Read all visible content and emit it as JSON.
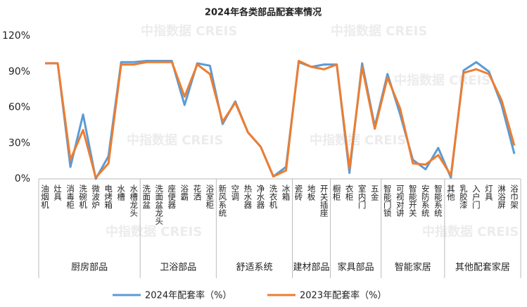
{
  "chart_data": {
    "type": "line",
    "title": "2024年各类部品配套率情况",
    "watermark": "中指数据 CREIS",
    "groups": [
      {
        "name": "厨房部品",
        "categories": [
          "油烟机",
          "灶具",
          "消毒柜",
          "洗碗机",
          "微波炉",
          "电烤箱",
          "水槽",
          "水槽龙头"
        ]
      },
      {
        "name": "卫浴部品",
        "categories": [
          "洗面盆",
          "洗面盆龙头",
          "座便器",
          "浴霸",
          "花洒",
          "浴室柜"
        ]
      },
      {
        "name": "舒适系统",
        "categories": [
          "新风系统",
          "空调",
          "热水器",
          "净水器",
          "洗衣机",
          "冰箱"
        ]
      },
      {
        "name": "建材部品",
        "categories": [
          "瓷砖",
          "地板",
          "开关插座"
        ]
      },
      {
        "name": "家具部品",
        "categories": [
          "橱柜",
          "衣柜",
          "室内门",
          "五金"
        ]
      },
      {
        "name": "智能家居",
        "categories": [
          "智能门锁",
          "可视对讲",
          "智能开关",
          "安防系统",
          "智能系统"
        ]
      },
      {
        "name": "其他配套家居",
        "categories": [
          "其他",
          "乳胶漆",
          "入户门",
          "灯具",
          "淋浴屏",
          "浴巾架"
        ]
      }
    ],
    "series": [
      {
        "name": "2024年配套率（%）",
        "color": "#5b9bd5",
        "values": [
          97,
          97,
          10,
          54,
          0,
          19,
          98,
          98,
          99,
          99,
          99,
          62,
          97,
          95,
          46,
          65,
          39,
          27,
          2,
          10,
          98,
          94,
          96,
          96,
          5,
          97,
          44,
          88,
          54,
          16,
          8,
          26,
          1,
          91,
          98,
          90,
          62,
          21
        ]
      },
      {
        "name": "2023年配套率（%）",
        "color": "#ed7d31",
        "values": [
          97,
          97,
          16,
          41,
          1,
          13,
          96,
          96,
          98,
          98,
          98,
          69,
          96,
          88,
          48,
          64,
          39,
          27,
          2,
          7,
          99,
          94,
          92,
          96,
          9,
          94,
          42,
          85,
          59,
          13,
          12,
          20,
          3,
          89,
          92,
          88,
          66,
          28
        ]
      }
    ],
    "ylim": [
      0,
      120
    ],
    "yticks": [
      {
        "value": 0,
        "label": "0%"
      },
      {
        "value": 30,
        "label": "30%"
      },
      {
        "value": 60,
        "label": "60%"
      },
      {
        "value": 90,
        "label": "90%"
      },
      {
        "value": 120,
        "label": "120%"
      }
    ],
    "grid": false
  }
}
